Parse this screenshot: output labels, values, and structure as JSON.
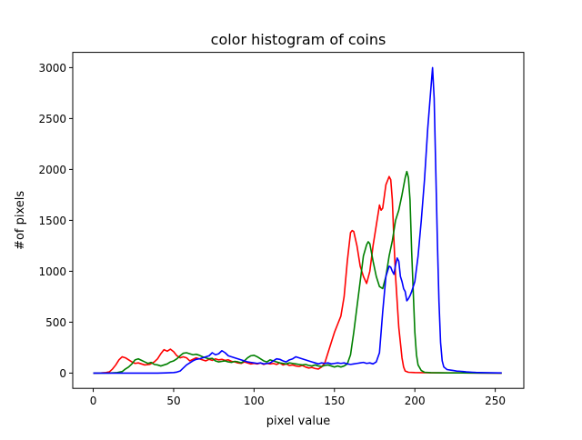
{
  "chart_data": {
    "type": "line",
    "title": "color histogram of coins",
    "xlabel": "pixel value",
    "ylabel": "#of pixels",
    "xlim": [
      -12.75,
      267.75
    ],
    "ylim": [
      -150,
      3150
    ],
    "xticks": [
      0,
      50,
      100,
      150,
      200,
      250
    ],
    "yticks": [
      0,
      500,
      1000,
      1500,
      2000,
      2500,
      3000
    ],
    "grid": false,
    "legend": "none",
    "series": [
      {
        "color": "#ff0000",
        "points": [
          [
            0,
            0
          ],
          [
            5,
            2
          ],
          [
            8,
            5
          ],
          [
            10,
            12
          ],
          [
            12,
            40
          ],
          [
            14,
            80
          ],
          [
            16,
            130
          ],
          [
            18,
            160
          ],
          [
            20,
            150
          ],
          [
            22,
            130
          ],
          [
            24,
            110
          ],
          [
            26,
            95
          ],
          [
            28,
            100
          ],
          [
            30,
            90
          ],
          [
            32,
            80
          ],
          [
            35,
            85
          ],
          [
            38,
            110
          ],
          [
            40,
            140
          ],
          [
            42,
            190
          ],
          [
            44,
            230
          ],
          [
            46,
            215
          ],
          [
            48,
            235
          ],
          [
            50,
            210
          ],
          [
            52,
            170
          ],
          [
            54,
            150
          ],
          [
            56,
            160
          ],
          [
            58,
            150
          ],
          [
            60,
            120
          ],
          [
            62,
            135
          ],
          [
            64,
            150
          ],
          [
            66,
            140
          ],
          [
            68,
            130
          ],
          [
            70,
            120
          ],
          [
            72,
            135
          ],
          [
            74,
            125
          ],
          [
            76,
            140
          ],
          [
            78,
            130
          ],
          [
            80,
            135
          ],
          [
            82,
            125
          ],
          [
            84,
            130
          ],
          [
            86,
            115
          ],
          [
            88,
            110
          ],
          [
            90,
            100
          ],
          [
            92,
            95
          ],
          [
            94,
            110
          ],
          [
            96,
            100
          ],
          [
            98,
            90
          ],
          [
            100,
            95
          ],
          [
            102,
            90
          ],
          [
            104,
            100
          ],
          [
            106,
            85
          ],
          [
            108,
            95
          ],
          [
            110,
            90
          ],
          [
            112,
            95
          ],
          [
            114,
            85
          ],
          [
            116,
            100
          ],
          [
            118,
            80
          ],
          [
            120,
            90
          ],
          [
            122,
            75
          ],
          [
            124,
            80
          ],
          [
            126,
            70
          ],
          [
            128,
            65
          ],
          [
            130,
            75
          ],
          [
            132,
            60
          ],
          [
            134,
            50
          ],
          [
            136,
            55
          ],
          [
            138,
            45
          ],
          [
            140,
            40
          ],
          [
            142,
            60
          ],
          [
            144,
            100
          ],
          [
            146,
            200
          ],
          [
            148,
            300
          ],
          [
            150,
            400
          ],
          [
            152,
            480
          ],
          [
            154,
            560
          ],
          [
            156,
            750
          ],
          [
            158,
            1100
          ],
          [
            160,
            1380
          ],
          [
            161,
            1400
          ],
          [
            162,
            1390
          ],
          [
            164,
            1250
          ],
          [
            166,
            1050
          ],
          [
            168,
            950
          ],
          [
            170,
            880
          ],
          [
            172,
            1000
          ],
          [
            174,
            1250
          ],
          [
            176,
            1450
          ],
          [
            178,
            1650
          ],
          [
            179,
            1600
          ],
          [
            180,
            1620
          ],
          [
            182,
            1850
          ],
          [
            184,
            1930
          ],
          [
            185,
            1900
          ],
          [
            186,
            1700
          ],
          [
            187,
            1300
          ],
          [
            188,
            950
          ],
          [
            189,
            700
          ],
          [
            190,
            450
          ],
          [
            191,
            300
          ],
          [
            192,
            150
          ],
          [
            193,
            60
          ],
          [
            194,
            20
          ],
          [
            196,
            8
          ],
          [
            200,
            5
          ],
          [
            210,
            3
          ],
          [
            220,
            2
          ],
          [
            240,
            1
          ],
          [
            254,
            0
          ]
        ]
      },
      {
        "color": "#008000",
        "points": [
          [
            0,
            0
          ],
          [
            10,
            1
          ],
          [
            15,
            5
          ],
          [
            18,
            15
          ],
          [
            20,
            40
          ],
          [
            22,
            60
          ],
          [
            24,
            90
          ],
          [
            26,
            130
          ],
          [
            28,
            140
          ],
          [
            30,
            125
          ],
          [
            32,
            110
          ],
          [
            34,
            95
          ],
          [
            36,
            105
          ],
          [
            38,
            85
          ],
          [
            40,
            80
          ],
          [
            42,
            70
          ],
          [
            44,
            80
          ],
          [
            46,
            90
          ],
          [
            48,
            110
          ],
          [
            50,
            120
          ],
          [
            52,
            140
          ],
          [
            54,
            170
          ],
          [
            56,
            195
          ],
          [
            58,
            200
          ],
          [
            60,
            190
          ],
          [
            62,
            180
          ],
          [
            64,
            185
          ],
          [
            66,
            175
          ],
          [
            68,
            160
          ],
          [
            70,
            150
          ],
          [
            72,
            140
          ],
          [
            74,
            145
          ],
          [
            76,
            120
          ],
          [
            78,
            110
          ],
          [
            80,
            115
          ],
          [
            82,
            120
          ],
          [
            84,
            110
          ],
          [
            86,
            105
          ],
          [
            88,
            115
          ],
          [
            90,
            110
          ],
          [
            92,
            100
          ],
          [
            94,
            120
          ],
          [
            96,
            150
          ],
          [
            98,
            170
          ],
          [
            100,
            175
          ],
          [
            102,
            160
          ],
          [
            104,
            140
          ],
          [
            106,
            120
          ],
          [
            108,
            110
          ],
          [
            110,
            130
          ],
          [
            112,
            120
          ],
          [
            114,
            110
          ],
          [
            116,
            100
          ],
          [
            118,
            95
          ],
          [
            120,
            90
          ],
          [
            122,
            100
          ],
          [
            124,
            95
          ],
          [
            126,
            90
          ],
          [
            128,
            85
          ],
          [
            130,
            80
          ],
          [
            132,
            85
          ],
          [
            134,
            75
          ],
          [
            136,
            70
          ],
          [
            138,
            80
          ],
          [
            140,
            70
          ],
          [
            142,
            65
          ],
          [
            144,
            75
          ],
          [
            146,
            80
          ],
          [
            148,
            70
          ],
          [
            150,
            60
          ],
          [
            152,
            70
          ],
          [
            154,
            60
          ],
          [
            156,
            70
          ],
          [
            158,
            90
          ],
          [
            160,
            180
          ],
          [
            162,
            400
          ],
          [
            164,
            650
          ],
          [
            166,
            900
          ],
          [
            168,
            1150
          ],
          [
            170,
            1260
          ],
          [
            171,
            1290
          ],
          [
            172,
            1270
          ],
          [
            174,
            1100
          ],
          [
            176,
            950
          ],
          [
            178,
            850
          ],
          [
            180,
            830
          ],
          [
            182,
            950
          ],
          [
            184,
            1150
          ],
          [
            186,
            1300
          ],
          [
            188,
            1500
          ],
          [
            190,
            1600
          ],
          [
            192,
            1750
          ],
          [
            194,
            1920
          ],
          [
            195,
            1980
          ],
          [
            196,
            1920
          ],
          [
            197,
            1700
          ],
          [
            198,
            1200
          ],
          [
            199,
            800
          ],
          [
            200,
            400
          ],
          [
            201,
            180
          ],
          [
            202,
            80
          ],
          [
            204,
            25
          ],
          [
            206,
            8
          ],
          [
            210,
            4
          ],
          [
            220,
            2
          ],
          [
            240,
            1
          ],
          [
            254,
            0
          ]
        ]
      },
      {
        "color": "#0000ff",
        "points": [
          [
            0,
            0
          ],
          [
            10,
            0
          ],
          [
            20,
            0
          ],
          [
            30,
            0
          ],
          [
            40,
            0
          ],
          [
            45,
            2
          ],
          [
            50,
            5
          ],
          [
            52,
            10
          ],
          [
            54,
            20
          ],
          [
            56,
            50
          ],
          [
            58,
            80
          ],
          [
            60,
            100
          ],
          [
            62,
            120
          ],
          [
            64,
            135
          ],
          [
            66,
            140
          ],
          [
            68,
            150
          ],
          [
            70,
            160
          ],
          [
            72,
            170
          ],
          [
            74,
            200
          ],
          [
            76,
            180
          ],
          [
            78,
            190
          ],
          [
            80,
            220
          ],
          [
            82,
            200
          ],
          [
            84,
            170
          ],
          [
            86,
            160
          ],
          [
            88,
            150
          ],
          [
            90,
            140
          ],
          [
            92,
            130
          ],
          [
            94,
            120
          ],
          [
            96,
            110
          ],
          [
            98,
            105
          ],
          [
            100,
            100
          ],
          [
            102,
            95
          ],
          [
            104,
            100
          ],
          [
            106,
            90
          ],
          [
            108,
            95
          ],
          [
            110,
            100
          ],
          [
            112,
            120
          ],
          [
            114,
            140
          ],
          [
            116,
            135
          ],
          [
            118,
            120
          ],
          [
            120,
            110
          ],
          [
            122,
            130
          ],
          [
            124,
            140
          ],
          [
            126,
            160
          ],
          [
            128,
            150
          ],
          [
            130,
            140
          ],
          [
            132,
            130
          ],
          [
            134,
            120
          ],
          [
            136,
            110
          ],
          [
            138,
            100
          ],
          [
            140,
            90
          ],
          [
            142,
            100
          ],
          [
            144,
            95
          ],
          [
            146,
            100
          ],
          [
            148,
            90
          ],
          [
            150,
            95
          ],
          [
            152,
            100
          ],
          [
            154,
            95
          ],
          [
            156,
            100
          ],
          [
            158,
            90
          ],
          [
            160,
            85
          ],
          [
            162,
            90
          ],
          [
            164,
            95
          ],
          [
            166,
            100
          ],
          [
            168,
            105
          ],
          [
            170,
            95
          ],
          [
            172,
            100
          ],
          [
            174,
            90
          ],
          [
            176,
            110
          ],
          [
            178,
            200
          ],
          [
            180,
            600
          ],
          [
            182,
            950
          ],
          [
            184,
            1050
          ],
          [
            185,
            1040
          ],
          [
            186,
            1000
          ],
          [
            187,
            970
          ],
          [
            188,
            1060
          ],
          [
            189,
            1130
          ],
          [
            190,
            1100
          ],
          [
            191,
            950
          ],
          [
            192,
            900
          ],
          [
            193,
            830
          ],
          [
            194,
            800
          ],
          [
            195,
            710
          ],
          [
            196,
            730
          ],
          [
            197,
            760
          ],
          [
            198,
            800
          ],
          [
            199,
            850
          ],
          [
            200,
            900
          ],
          [
            202,
            1150
          ],
          [
            204,
            1500
          ],
          [
            206,
            1900
          ],
          [
            208,
            2400
          ],
          [
            210,
            2800
          ],
          [
            211,
            3000
          ],
          [
            212,
            2700
          ],
          [
            213,
            2000
          ],
          [
            214,
            1300
          ],
          [
            215,
            700
          ],
          [
            216,
            300
          ],
          [
            217,
            120
          ],
          [
            218,
            60
          ],
          [
            220,
            35
          ],
          [
            222,
            30
          ],
          [
            224,
            25
          ],
          [
            226,
            20
          ],
          [
            228,
            18
          ],
          [
            230,
            15
          ],
          [
            232,
            12
          ],
          [
            234,
            10
          ],
          [
            236,
            8
          ],
          [
            238,
            6
          ],
          [
            240,
            5
          ],
          [
            244,
            4
          ],
          [
            248,
            3
          ],
          [
            252,
            2
          ],
          [
            254,
            2
          ]
        ]
      }
    ]
  }
}
